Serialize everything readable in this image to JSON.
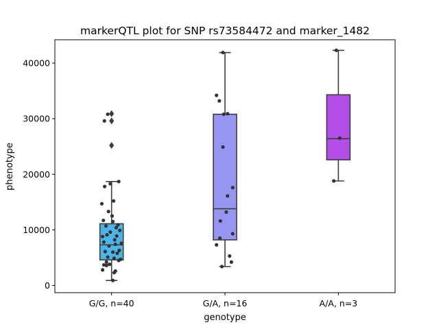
{
  "chart_data": {
    "type": "box",
    "title": "markerQTL plot for SNP rs73584472 and marker_1482",
    "xlabel": "genotype",
    "ylabel": "phenotype",
    "ylim": [
      -1300,
      44200
    ],
    "yticks": [
      0,
      10000,
      20000,
      30000,
      40000
    ],
    "grid": false,
    "categories": [
      "G/G, n=40",
      "G/A, n=16",
      "A/A, n=3"
    ],
    "boxes": [
      {
        "category": "G/G, n=40",
        "color": "#4db4e8",
        "whisker_low": 900,
        "q1": 4600,
        "median": 7300,
        "q3": 11100,
        "whisker_high": 18700,
        "outliers": [
          25200,
          29600,
          30900
        ],
        "points": [
          {
            "j": -0.35,
            "y": 2800
          },
          {
            "j": -0.3,
            "y": 3700
          },
          {
            "j": -0.2,
            "y": 3600
          },
          {
            "j": 0.35,
            "y": 4700
          },
          {
            "j": 0.28,
            "y": 4500
          },
          {
            "j": -0.15,
            "y": 5100
          },
          {
            "j": 0.1,
            "y": 4900
          },
          {
            "j": -0.25,
            "y": 6100
          },
          {
            "j": 0.05,
            "y": 6000
          },
          {
            "j": 0.3,
            "y": 6300
          },
          {
            "j": -0.1,
            "y": 7100
          },
          {
            "j": 0.15,
            "y": 7400
          },
          {
            "j": 0.38,
            "y": 7600
          },
          {
            "j": -0.3,
            "y": 7800
          },
          {
            "j": -0.35,
            "y": 8800
          },
          {
            "j": 0.2,
            "y": 8900
          },
          {
            "j": -0.05,
            "y": 9600
          },
          {
            "j": 0.32,
            "y": 9900
          },
          {
            "j": 0.18,
            "y": 10400
          },
          {
            "j": -0.22,
            "y": 10700
          },
          {
            "j": 0.25,
            "y": 10900
          },
          {
            "j": -0.32,
            "y": 11700
          },
          {
            "j": 0.05,
            "y": 11500
          },
          {
            "j": -0.38,
            "y": 14700
          },
          {
            "j": 0.08,
            "y": 15200
          },
          {
            "j": -0.27,
            "y": 17800
          },
          {
            "j": -0.05,
            "y": 18300
          },
          {
            "j": 0.28,
            "y": 18700
          },
          {
            "j": -0.28,
            "y": 29600
          },
          {
            "j": -0.15,
            "y": 30800
          },
          {
            "j": 0.1,
            "y": 2300
          },
          {
            "j": 0.15,
            "y": 2600
          },
          {
            "j": 0.05,
            "y": 900
          },
          {
            "j": -0.08,
            "y": 3800
          },
          {
            "j": 0.22,
            "y": 5800
          },
          {
            "j": -0.18,
            "y": 9100
          },
          {
            "j": 0.02,
            "y": 12500
          },
          {
            "j": -0.12,
            "y": 13300
          },
          {
            "j": 0.12,
            "y": 8200
          },
          {
            "j": -0.2,
            "y": 4200
          }
        ]
      },
      {
        "category": "G/A, n=16",
        "color": "#9696f2",
        "whisker_low": 3400,
        "q1": 8200,
        "median": 13800,
        "q3": 30800,
        "whisker_high": 41900,
        "outliers": [],
        "points": [
          {
            "j": -0.08,
            "y": 41900
          },
          {
            "j": -0.33,
            "y": 34200
          },
          {
            "j": -0.22,
            "y": 33200
          },
          {
            "j": -0.05,
            "y": 30800
          },
          {
            "j": 0.1,
            "y": 30900
          },
          {
            "j": -0.08,
            "y": 24900
          },
          {
            "j": 0.3,
            "y": 17600
          },
          {
            "j": 0.1,
            "y": 16100
          },
          {
            "j": -0.18,
            "y": 11600
          },
          {
            "j": 0.3,
            "y": 9300
          },
          {
            "j": -0.2,
            "y": 8500
          },
          {
            "j": -0.33,
            "y": 7300
          },
          {
            "j": 0.18,
            "y": 5300
          },
          {
            "j": 0.25,
            "y": 4200
          },
          {
            "j": -0.12,
            "y": 3400
          },
          {
            "j": 0.05,
            "y": 13200
          }
        ]
      },
      {
        "category": "A/A, n=3",
        "color": "#b34fe8",
        "whisker_low": 18800,
        "q1": 22600,
        "median": 26400,
        "q3": 34300,
        "whisker_high": 42300,
        "outliers": [],
        "points": [
          {
            "j": -0.08,
            "y": 42300
          },
          {
            "j": 0.05,
            "y": 26500
          },
          {
            "j": -0.18,
            "y": 18800
          }
        ]
      }
    ]
  }
}
